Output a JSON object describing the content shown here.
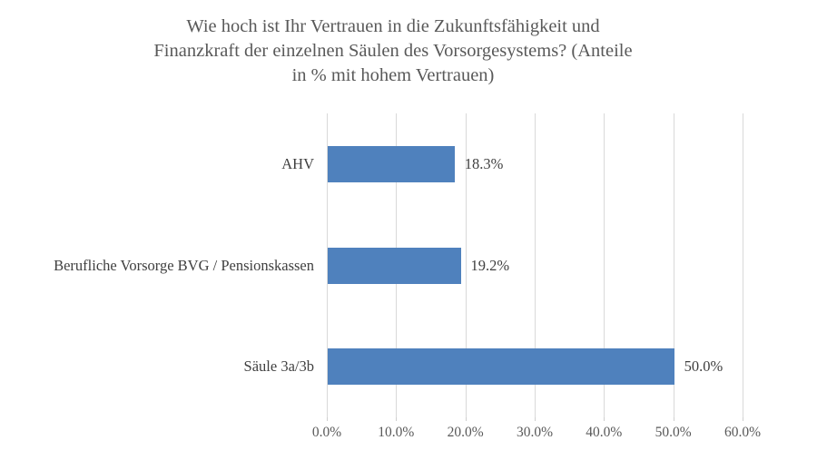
{
  "title_lines": [
    "Wie hoch ist Ihr Vertrauen in die Zukunftsfähigkeit und",
    "Finanzkraft der einzelnen Säulen des Vorsorgesystems? (Anteile",
    "in % mit hohem Vertrauen)"
  ],
  "colors": {
    "bar": "#4F81BD",
    "gridline": "#D9D9D9",
    "title_text": "#595959",
    "label_text": "#3F3F3F",
    "axis_text": "#595959",
    "background": "#FFFFFF"
  },
  "chart_data": {
    "type": "bar",
    "orientation": "horizontal",
    "title": "Wie hoch ist Ihr Vertrauen in die Zukunftsfähigkeit und Finanzkraft der einzelnen Säulen des Vorsorgesystems? (Anteile in % mit hohem Vertrauen)",
    "categories": [
      "AHV",
      "Berufliche Vorsorge BVG / Pensionskassen",
      "Säule 3a/3b"
    ],
    "values": [
      18.3,
      19.2,
      50.0
    ],
    "data_labels": [
      "18.3%",
      "19.2%",
      "50.0%"
    ],
    "x_axis": {
      "min": 0,
      "max": 60,
      "ticks": [
        "0.0%",
        "10.0%",
        "20.0%",
        "30.0%",
        "40.0%",
        "50.0%",
        "60.0%"
      ]
    },
    "grid": true,
    "legend": false,
    "xlabel": "",
    "ylabel": ""
  }
}
